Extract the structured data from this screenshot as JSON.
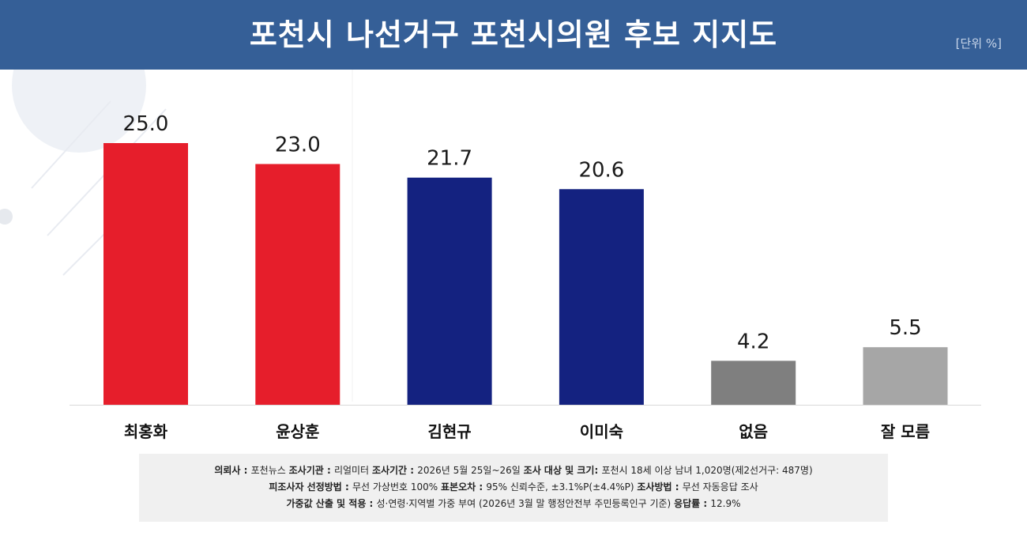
{
  "header": {
    "title": "포천시 나선거구 포천시의원 후보 지지도",
    "unit": "[단위 %]"
  },
  "colors": {
    "header_bg": "#355f97",
    "red": "#e61e2b",
    "navy": "#142280",
    "dark_gray": "#7f7f7f",
    "light_gray": "#a6a6a6"
  },
  "chart_data": {
    "type": "bar",
    "title": "포천시 나선거구 포천시의원 후보 지지도",
    "unit": "[단위 %]",
    "categories": [
      "최홍화",
      "윤상훈",
      "김현규",
      "이미숙",
      "없음",
      "잘 모름"
    ],
    "values": [
      25.0,
      23.0,
      21.7,
      20.6,
      4.2,
      5.5
    ],
    "value_labels": [
      "25.0",
      "23.0",
      "21.7",
      "20.6",
      "4.2",
      "5.5"
    ],
    "bar_colors": [
      "#e61e2b",
      "#e61e2b",
      "#142280",
      "#142280",
      "#7f7f7f",
      "#a6a6a6"
    ],
    "ylim": [
      0,
      27.5
    ],
    "grid": false,
    "legend": "none"
  },
  "notes": {
    "l1": [
      {
        "k": "의뢰사 : ",
        "v": "포천뉴스"
      },
      {
        "k": "조사기관 : ",
        "v": "리얼미터"
      },
      {
        "k": "조사기간 : ",
        "v": "2026년 5월 25일~26일"
      },
      {
        "k": "조사 대상 및 크기: ",
        "v": "포천시 18세 이상 남녀 1,020명(제2선거구:  487명)"
      }
    ],
    "l2": [
      {
        "k": "피조사자 선정방법 : ",
        "v": "무선 가상번호 100%"
      },
      {
        "k": "표본오차 : ",
        "v": "95% 신뢰수준,  ±3.1%P(±4.4%P)"
      },
      {
        "k": "조사방법 : ",
        "v": "무선 자동응답 조사"
      }
    ],
    "l3": [
      {
        "k": "가중값 산출 및 적용 : ",
        "v": "성·연령·지역별  가중 부여 (2026년 3월 말 행정안전부  주민등록인구  기준)"
      },
      {
        "k": "응답률 : ",
        "v": "12.9%"
      }
    ]
  }
}
